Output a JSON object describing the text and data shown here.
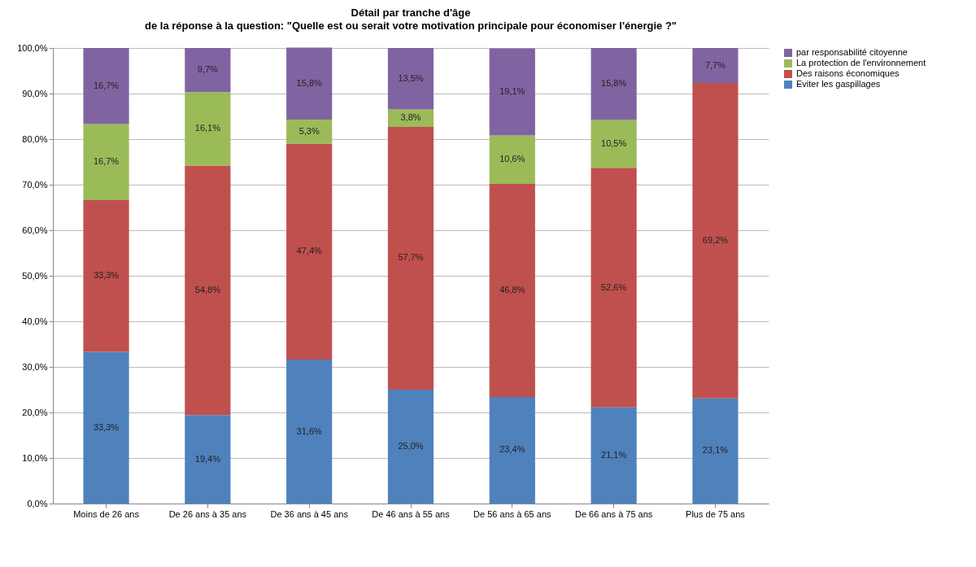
{
  "chart_data": {
    "type": "bar",
    "stacked": true,
    "title": "Détail par tranche d'âge",
    "subtitle": "de la réponse à la question: \"Quelle est ou serait votre motivation principale pour économiser l'énergie ?\"",
    "categories": [
      "Moins de 26 ans",
      "De 26 ans à 35 ans",
      "De 36 ans à 45 ans",
      "De 46 ans à 55 ans",
      "De 56 ans à 65 ans",
      "De 66 ans à 75 ans",
      "Plus de 75 ans"
    ],
    "series": [
      {
        "name": "Eviter les gaspillages",
        "color": "#4f81bd",
        "values": [
          33.3,
          19.4,
          31.6,
          25.0,
          23.4,
          21.1,
          23.1
        ],
        "value_labels": [
          "33,3%",
          "19,4%",
          "31,6%",
          "25,0%",
          "23,4%",
          "21,1%",
          "23,1%"
        ]
      },
      {
        "name": "Des raisons économiques",
        "color": "#c0504d",
        "values": [
          33.3,
          54.8,
          47.4,
          57.7,
          46.8,
          52.6,
          69.2
        ],
        "value_labels": [
          "33,3%",
          "54,8%",
          "47,4%",
          "57,7%",
          "46,8%",
          "52,6%",
          "69,2%"
        ]
      },
      {
        "name": "La protection de l'environnement",
        "color": "#9bbb59",
        "values": [
          16.7,
          16.1,
          5.3,
          3.8,
          10.6,
          10.5,
          null
        ],
        "value_labels": [
          "16,7%",
          "16,1%",
          "5,3%",
          "3,8%",
          "10,6%",
          "10,5%",
          null
        ]
      },
      {
        "name": "par responsabilité citoyenne",
        "color": "#8064a2",
        "values": [
          16.7,
          9.7,
          15.8,
          13.5,
          19.1,
          15.8,
          7.7
        ],
        "value_labels": [
          "16,7%",
          "9,7%",
          "15,8%",
          "13,5%",
          "19,1%",
          "15,8%",
          "7,7%"
        ]
      }
    ],
    "ylim": [
      0,
      100
    ],
    "yticks": [
      {
        "value": 0,
        "label": "0,0%"
      },
      {
        "value": 10,
        "label": "10,0%"
      },
      {
        "value": 20,
        "label": "20,0%"
      },
      {
        "value": 30,
        "label": "30,0%"
      },
      {
        "value": 40,
        "label": "40,0%"
      },
      {
        "value": 50,
        "label": "50,0%"
      },
      {
        "value": 60,
        "label": "60,0%"
      },
      {
        "value": 70,
        "label": "70,0%"
      },
      {
        "value": 80,
        "label": "80,0%"
      },
      {
        "value": 90,
        "label": "90,0%"
      },
      {
        "value": 100,
        "label": "100,0%"
      }
    ],
    "grid": "y",
    "legend": "right"
  }
}
